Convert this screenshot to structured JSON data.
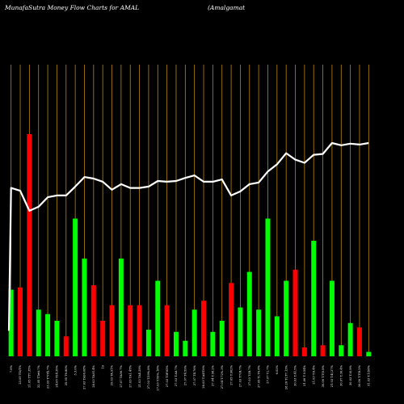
{
  "chart_data": {
    "type": "bar",
    "title": "MunafaSutra  Money Flow  Charts for AMAL",
    "subtitle": "(Amalgamat",
    "colors": {
      "up": "#00ff00",
      "down": "#ff0000",
      "line": "#ffffff",
      "grid": "#b8860b",
      "background": "#000000"
    },
    "ylim": [
      0,
      100
    ],
    "grid": true,
    "bars": [
      {
        "value": 30,
        "color": "up"
      },
      {
        "value": 31,
        "color": "down"
      },
      {
        "value": 100,
        "color": "down"
      },
      {
        "value": 21,
        "color": "up"
      },
      {
        "value": 19,
        "color": "up"
      },
      {
        "value": 16,
        "color": "up"
      },
      {
        "value": 9,
        "color": "down"
      },
      {
        "value": 62,
        "color": "up"
      },
      {
        "value": 44,
        "color": "up"
      },
      {
        "value": 32,
        "color": "down"
      },
      {
        "value": 16,
        "color": "down"
      },
      {
        "value": 23,
        "color": "down"
      },
      {
        "value": 44,
        "color": "up"
      },
      {
        "value": 23,
        "color": "down"
      },
      {
        "value": 23,
        "color": "down"
      },
      {
        "value": 12,
        "color": "up"
      },
      {
        "value": 34,
        "color": "up"
      },
      {
        "value": 23,
        "color": "down"
      },
      {
        "value": 11,
        "color": "up"
      },
      {
        "value": 7,
        "color": "up"
      },
      {
        "value": 21,
        "color": "up"
      },
      {
        "value": 25,
        "color": "down"
      },
      {
        "value": 11,
        "color": "up"
      },
      {
        "value": 16,
        "color": "up"
      },
      {
        "value": 33,
        "color": "down"
      },
      {
        "value": 22,
        "color": "up"
      },
      {
        "value": 38,
        "color": "up"
      },
      {
        "value": 21,
        "color": "up"
      },
      {
        "value": 62,
        "color": "up"
      },
      {
        "value": 18,
        "color": "up"
      },
      {
        "value": 34,
        "color": "up"
      },
      {
        "value": 39,
        "color": "down"
      },
      {
        "value": 4,
        "color": "down"
      },
      {
        "value": 52,
        "color": "up"
      },
      {
        "value": 5,
        "color": "down"
      },
      {
        "value": 34,
        "color": "up"
      },
      {
        "value": 5,
        "color": "up"
      },
      {
        "value": 15,
        "color": "up"
      },
      {
        "value": 13,
        "color": "down"
      },
      {
        "value": 2,
        "color": "up"
      }
    ],
    "line": [
      75.8,
      74.5,
      65.5,
      67.3,
      71.6,
      72.4,
      72.4,
      76.4,
      80.7,
      80.0,
      78.6,
      75.0,
      77.5,
      75.8,
      75.8,
      76.4,
      78.9,
      78.6,
      78.9,
      80.3,
      81.4,
      78.6,
      78.6,
      79.6,
      72.4,
      74.2,
      77.5,
      78.2,
      83.2,
      86.4,
      91.4,
      88.5,
      87.1,
      90.7,
      91.1,
      96.0,
      95.0,
      95.7,
      95.3,
      96.0
    ],
    "line_start": 11.5,
    "x_labels": [
      "7.6%",
      "23.05 TD/1%",
      "21.05 TT7.35%",
      "22.05 T1ett.7%",
      "23.03 T7(Tb.7%",
      "24.05 T24.35%",
      "25.05 T6.80%",
      "3.3.0%",
      "27.03 TA96.08%",
      "28.03 TA91.4%",
      "19",
      "29.03 TA.91%",
      "27.07 TA96.7%",
      "27.03 TA1.4T%",
      "21.03 TA4.29%",
      "27.03 T.59%.8%",
      "27.03 T.59%.18%",
      "27.03 T3F.65%",
      "27.03 T.A8.7%",
      "27.07 T4.59%",
      "27.07 T4.76%",
      "28.03 T.ADT.6%",
      "27.04 T.98.2%",
      "27.04 T.72%.3%",
      "27.05 T.962%",
      "27.03 T7(R.7%",
      "27.03 T.(R.7%",
      "27.05 T(.T6.8%",
      "27.07 T.(.7%",
      "6.02%",
      "28.26 T(.T7.13%",
      "30.03 T.41.5%",
      "21.06 T.9.54%",
      "21.03 T.6.4%",
      "30.06 T.T(0.8%",
      "21.03 T.4(.27%",
      "30.07 T.36.4%",
      "30.03 T.8(.9%",
      "30.06 T.T(8.2%",
      "31.03 T.1(58%"
    ]
  }
}
